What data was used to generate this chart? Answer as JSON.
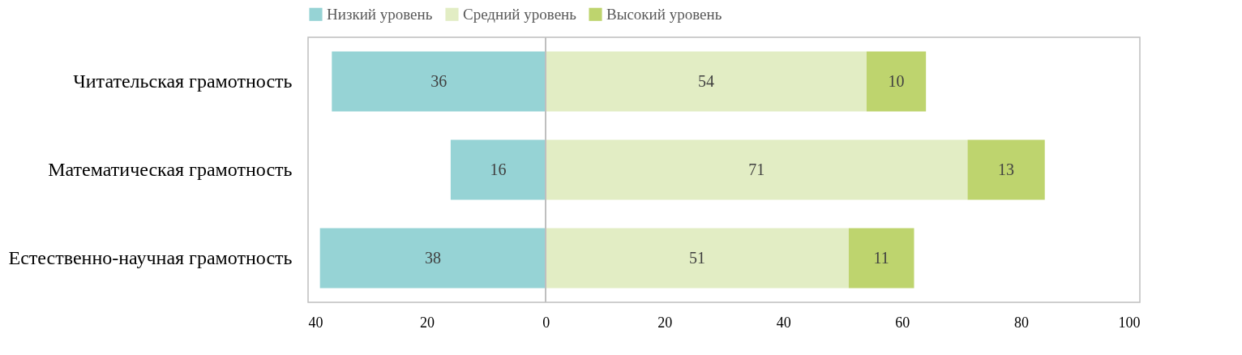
{
  "chart_data": {
    "type": "bar",
    "orientation": "horizontal",
    "categories": [
      "Читательская грамотность",
      "Математическая грамотность",
      "Естественно-научная грамотность"
    ],
    "series": [
      {
        "name": "Низкий уровень",
        "color": "#96d3d5",
        "values": [
          36,
          16,
          38
        ],
        "base": [
          -36,
          -16,
          -38
        ]
      },
      {
        "name": "Средний уровень",
        "color": "#e2edc4",
        "values": [
          54,
          71,
          51
        ],
        "base": [
          0,
          0,
          0
        ]
      },
      {
        "name": "Высокий уровень",
        "color": "#bed46e",
        "values": [
          10,
          13,
          11
        ],
        "base": [
          54,
          71,
          51
        ]
      }
    ],
    "xlim": [
      -40,
      100
    ],
    "xticks": [
      {
        "value": -40,
        "label": "40"
      },
      {
        "value": -20,
        "label": "20"
      },
      0,
      20,
      40,
      60,
      80,
      100
    ],
    "ref_lines": [
      {
        "axis": "x",
        "value": 0,
        "color": "#bfbfbf"
      }
    ],
    "data_labels": true,
    "legend": "top",
    "grid": false
  }
}
